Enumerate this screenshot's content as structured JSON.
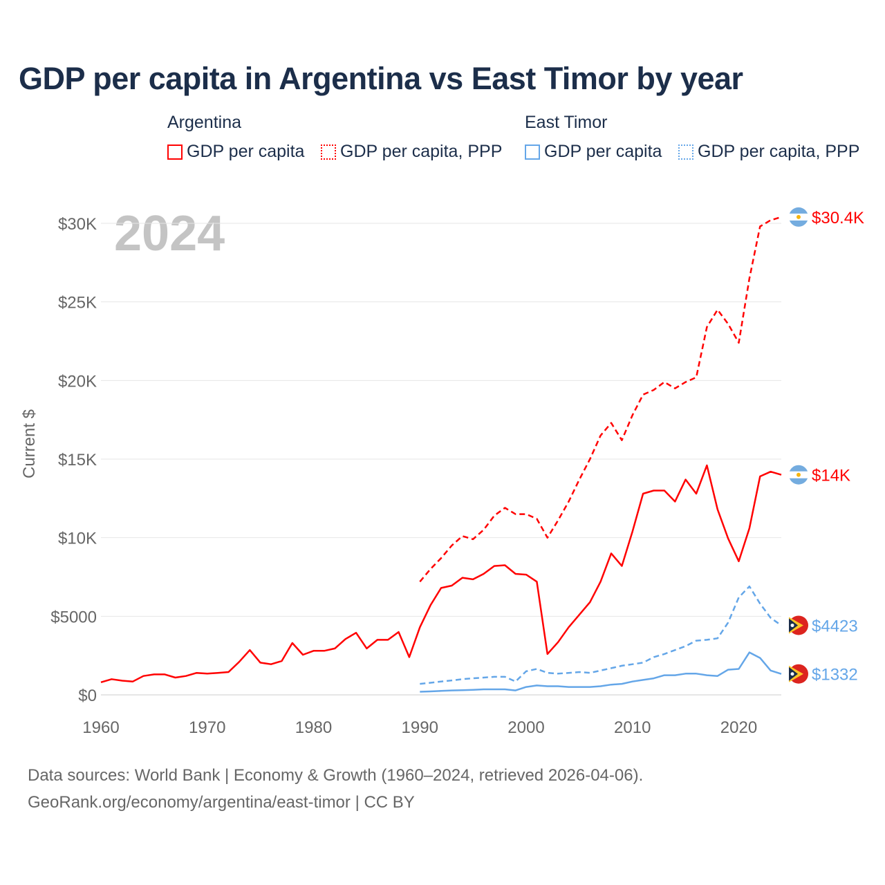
{
  "title": "GDP per capita in Argentina vs East Timor by year",
  "legend": {
    "groups": [
      {
        "name": "Argentina",
        "items": [
          "GDP per capita",
          "GDP per capita, PPP"
        ]
      },
      {
        "name": "East Timor",
        "items": [
          "GDP per capita",
          "GDP per capita, PPP"
        ]
      }
    ]
  },
  "year_overlay": "2024",
  "footer": {
    "line1": "Data sources: World Bank | Economy & Growth (1960–2024, retrieved 2026-04-06).",
    "line2": "GeoRank.org/economy/argentina/east-timor | CC BY"
  },
  "colors": {
    "argentina": "#ff0000",
    "east_timor": "#64a6e8",
    "grid": "#e6e6e6",
    "axis_text": "#666666"
  },
  "chart_data": {
    "type": "line",
    "title": "GDP per capita in Argentina vs East Timor by year",
    "xlabel": "",
    "ylabel": "Current $",
    "xlim": [
      1960,
      2024
    ],
    "ylim": [
      0,
      30000
    ],
    "xticks": [
      1960,
      1970,
      1980,
      1990,
      2000,
      2010,
      2020
    ],
    "xtick_labels": [
      "1960",
      "1970",
      "1980",
      "1990",
      "2000",
      "2010",
      "2020"
    ],
    "yticks": [
      0,
      5000,
      10000,
      15000,
      20000,
      25000,
      30000
    ],
    "ytick_labels": [
      "$0",
      "$5000",
      "$10K",
      "$15K",
      "$20K",
      "$25K",
      "$30K"
    ],
    "grid": true,
    "legend_position": "top",
    "series": [
      {
        "name": "Argentina GDP per capita",
        "country": "argentina",
        "dashed": false,
        "start": 1960,
        "end_label": "$14K",
        "values": [
          800,
          1000,
          900,
          850,
          1200,
          1300,
          1300,
          1100,
          1200,
          1400,
          1350,
          1400,
          1450,
          2100,
          2850,
          2050,
          1950,
          2150,
          3300,
          2550,
          2800,
          2800,
          2950,
          3550,
          3950,
          2950,
          3500,
          3500,
          4000,
          2400,
          4300,
          5700,
          6800,
          6950,
          7450,
          7350,
          7700,
          8200,
          8250,
          7700,
          7650,
          7200,
          2600,
          3350,
          4300,
          5100,
          5900,
          7200,
          9000,
          8200,
          10400,
          12800,
          13000,
          13000,
          12300,
          13700,
          12800,
          14600,
          11800,
          9950,
          8500,
          10600,
          13900,
          14200,
          14000
        ]
      },
      {
        "name": "Argentina GDP per capita, PPP",
        "country": "argentina",
        "dashed": true,
        "start": 1990,
        "end_label": "$30.4K",
        "values": [
          7200,
          8000,
          8700,
          9500,
          10100,
          9900,
          10500,
          11400,
          11900,
          11500,
          11500,
          11200,
          10000,
          11100,
          12300,
          13700,
          15000,
          16500,
          17300,
          16200,
          17800,
          19100,
          19400,
          19900,
          19500,
          19900,
          20200,
          23400,
          24500,
          23600,
          22400,
          26500,
          29800,
          30200,
          30400
        ]
      },
      {
        "name": "East Timor GDP per capita",
        "country": "east_timor",
        "dashed": false,
        "start": 1990,
        "end_label": "$1332",
        "values": [
          200,
          220,
          250,
          280,
          300,
          320,
          350,
          350,
          350,
          280,
          500,
          600,
          550,
          550,
          500,
          500,
          500,
          550,
          650,
          700,
          850,
          950,
          1050,
          1250,
          1250,
          1350,
          1350,
          1250,
          1200,
          1600,
          1650,
          2700,
          2350,
          1550,
          1332
        ]
      },
      {
        "name": "East Timor GDP per capita, PPP",
        "country": "east_timor",
        "dashed": true,
        "start": 1990,
        "end_label": "$4423",
        "values": [
          700,
          770,
          850,
          920,
          1000,
          1050,
          1100,
          1150,
          1150,
          850,
          1500,
          1650,
          1400,
          1350,
          1400,
          1450,
          1400,
          1550,
          1700,
          1850,
          1950,
          2050,
          2400,
          2600,
          2850,
          3100,
          3450,
          3500,
          3600,
          4600,
          6200,
          6900,
          5800,
          4900,
          4423
        ]
      }
    ]
  }
}
